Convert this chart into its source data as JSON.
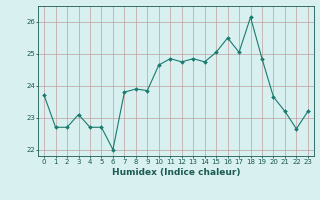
{
  "x": [
    0,
    1,
    2,
    3,
    4,
    5,
    6,
    7,
    8,
    9,
    10,
    11,
    12,
    13,
    14,
    15,
    16,
    17,
    18,
    19,
    20,
    21,
    22,
    23
  ],
  "y": [
    23.7,
    22.7,
    22.7,
    23.1,
    22.7,
    22.7,
    22.0,
    23.8,
    23.9,
    23.85,
    24.65,
    24.85,
    24.75,
    24.85,
    24.75,
    25.05,
    25.5,
    25.05,
    26.15,
    24.85,
    23.65,
    23.2,
    22.65,
    23.2
  ],
  "line_color": "#1a7a6e",
  "marker": "D",
  "marker_size": 2.0,
  "xlabel": "Humidex (Indice chaleur)",
  "ylim": [
    21.8,
    26.5
  ],
  "xlim": [
    -0.5,
    23.5
  ],
  "bg_color": "#d8f0f0",
  "grid_color": "#c0a0a0",
  "tick_label_color": "#1a5a50",
  "xlabel_color": "#1a5a50",
  "yticks": [
    22,
    23,
    24,
    25,
    26
  ],
  "xticks": [
    0,
    1,
    2,
    3,
    4,
    5,
    6,
    7,
    8,
    9,
    10,
    11,
    12,
    13,
    14,
    15,
    16,
    17,
    18,
    19,
    20,
    21,
    22,
    23
  ],
  "tick_fontsize": 5.0,
  "xlabel_fontsize": 6.5
}
